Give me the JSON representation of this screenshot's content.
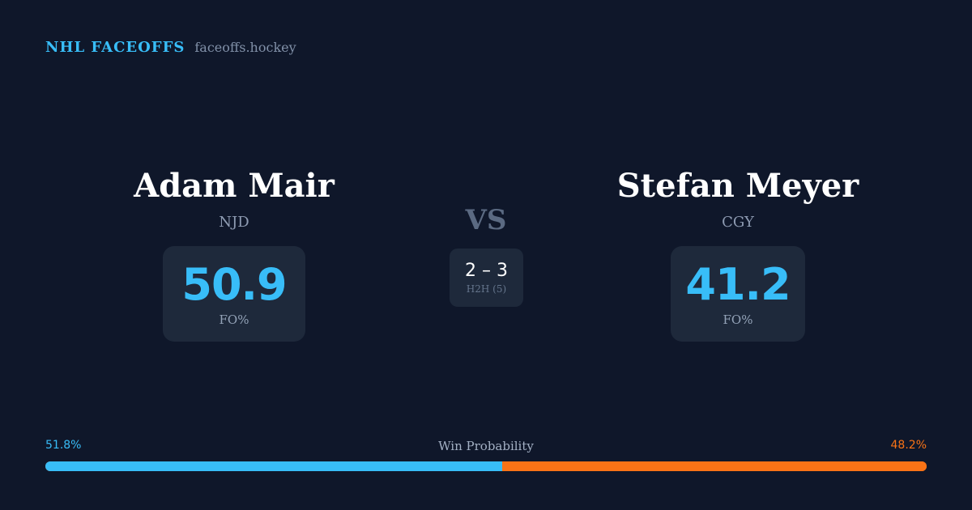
{
  "brand": {
    "title": "NHL FACEOFFS",
    "domain": "faceoffs.hockey"
  },
  "player_left": {
    "name": "Adam Mair",
    "team": "NJD",
    "fo_pct": "50.9",
    "fo_label": "FO%"
  },
  "player_right": {
    "name": "Stefan Meyer",
    "team": "CGY",
    "fo_pct": "41.2",
    "fo_label": "FO%"
  },
  "versus": {
    "label": "VS",
    "h2h_score": "2 – 3",
    "h2h_label": "H2H (5)"
  },
  "win_probability": {
    "title": "Win Probability",
    "left_pct_text": "51.8%",
    "right_pct_text": "48.2%",
    "left_fraction": 0.518,
    "left_color": "#38bdf8",
    "right_color": "#f97316"
  }
}
